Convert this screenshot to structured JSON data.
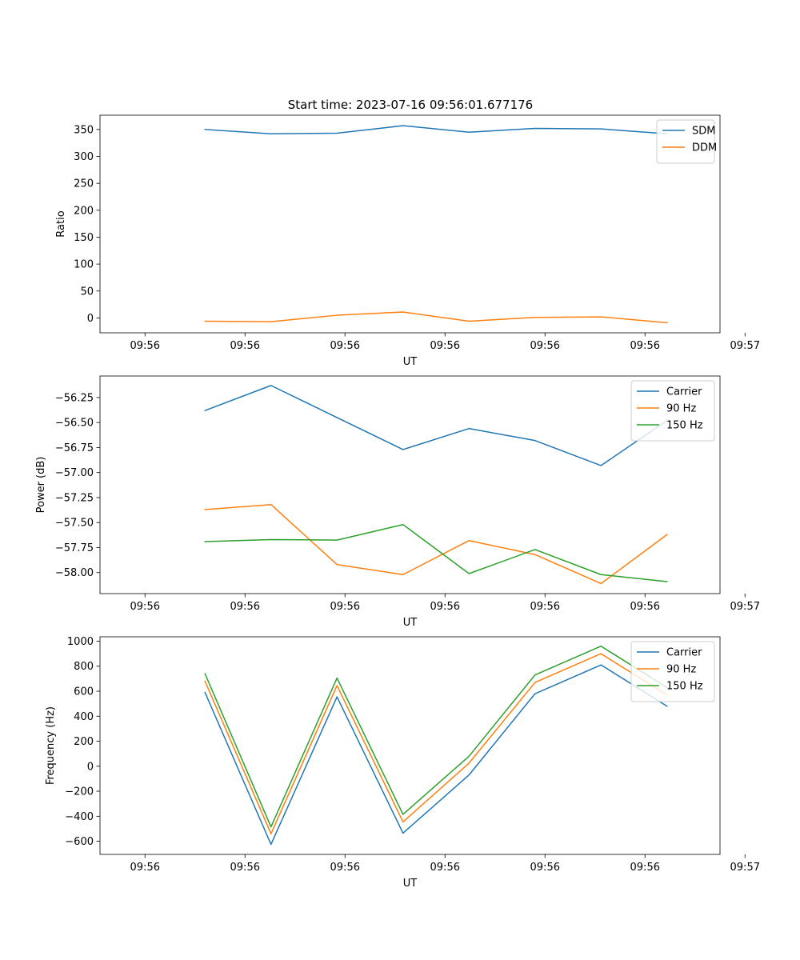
{
  "figure_title": "Start time: 2023-07-16 09:56:01.677176",
  "colors": {
    "blue": "#1f77b4",
    "orange": "#ff7f0e",
    "green": "#2ca02c"
  },
  "chart_data": [
    {
      "id": "ratio",
      "type": "line",
      "title": "Start time: 2023-07-16 09:56:01.677176",
      "xlabel": "UT",
      "ylabel": "Ratio",
      "x": [
        0.6,
        1.26,
        1.92,
        2.58,
        3.24,
        3.9,
        4.56,
        5.22
      ],
      "xlim": [
        -0.45,
        5.75
      ],
      "xticks": [
        0,
        1,
        2,
        3,
        4,
        5,
        6
      ],
      "xtick_labels": [
        "09:56",
        "09:56",
        "09:56",
        "09:56",
        "09:56",
        "09:56",
        "09:57"
      ],
      "ylim": [
        -27.6,
        376.5
      ],
      "yticks": [
        0,
        50,
        100,
        150,
        200,
        250,
        300,
        350
      ],
      "ytick_labels": [
        "0",
        "50",
        "100",
        "150",
        "200",
        "250",
        "300",
        "350"
      ],
      "legend_position": "top-right",
      "series": [
        {
          "name": "SDM",
          "color": "#1f77b4",
          "values": [
            350,
            342,
            343,
            357,
            345,
            352,
            351,
            342
          ]
        },
        {
          "name": "DDM",
          "color": "#ff7f0e",
          "values": [
            -6,
            -7,
            5,
            11,
            -6,
            1,
            2,
            -9
          ]
        }
      ]
    },
    {
      "id": "power",
      "type": "line",
      "title": "",
      "xlabel": "UT",
      "ylabel": "Power (dB)",
      "x": [
        0.6,
        1.26,
        1.92,
        2.58,
        3.24,
        3.9,
        4.56,
        5.22
      ],
      "xlim": [
        -0.45,
        5.75
      ],
      "xticks": [
        0,
        1,
        2,
        3,
        4,
        5,
        6
      ],
      "xtick_labels": [
        "09:56",
        "09:56",
        "09:56",
        "09:56",
        "09:56",
        "09:56",
        "09:57"
      ],
      "ylim": [
        -58.21,
        -56.035
      ],
      "yticks": [
        -58.0,
        -57.75,
        -57.5,
        -57.25,
        -57.0,
        -56.75,
        -56.5,
        -56.25
      ],
      "ytick_labels": [
        "−58.00",
        "−57.75",
        "−57.50",
        "−57.25",
        "−57.00",
        "−56.75",
        "−56.50",
        "−56.25"
      ],
      "legend_position": "top-right",
      "series": [
        {
          "name": "Carrier",
          "color": "#1f77b4",
          "values": [
            -56.38,
            -56.13,
            -56.45,
            -56.77,
            -56.56,
            -56.68,
            -56.93,
            -56.48
          ]
        },
        {
          "name": "90 Hz",
          "color": "#ff7f0e",
          "values": [
            -57.37,
            -57.32,
            -57.92,
            -58.02,
            -57.68,
            -57.82,
            -58.11,
            -57.62
          ]
        },
        {
          "name": "150 Hz",
          "color": "#2ca02c",
          "values": [
            -57.69,
            -57.67,
            -57.675,
            -57.52,
            -58.01,
            -57.77,
            -58.02,
            -58.09
          ]
        }
      ]
    },
    {
      "id": "frequency",
      "type": "line",
      "title": "",
      "xlabel": "UT",
      "ylabel": "Frequency (Hz)",
      "x": [
        0.6,
        1.26,
        1.92,
        2.58,
        3.24,
        3.9,
        4.56,
        5.22
      ],
      "xlim": [
        -0.45,
        5.75
      ],
      "xticks": [
        0,
        1,
        2,
        3,
        4,
        5,
        6
      ],
      "xtick_labels": [
        "09:56",
        "09:56",
        "09:56",
        "09:56",
        "09:56",
        "09:56",
        "09:57"
      ],
      "ylim": [
        -705,
        1035
      ],
      "yticks": [
        -600,
        -400,
        -200,
        0,
        200,
        400,
        600,
        800,
        1000
      ],
      "ytick_labels": [
        "−600",
        "−400",
        "−200",
        "0",
        "200",
        "400",
        "600",
        "800",
        "1000"
      ],
      "legend_position": "top-right",
      "series": [
        {
          "name": "Carrier",
          "color": "#1f77b4",
          "values": [
            590,
            -625,
            555,
            -535,
            -70,
            580,
            810,
            480
          ]
        },
        {
          "name": "90 Hz",
          "color": "#ff7f0e",
          "values": [
            680,
            -540,
            645,
            -445,
            25,
            670,
            900,
            570
          ]
        },
        {
          "name": "150 Hz",
          "color": "#2ca02c",
          "values": [
            740,
            -485,
            705,
            -385,
            80,
            730,
            960,
            630
          ]
        }
      ]
    }
  ]
}
